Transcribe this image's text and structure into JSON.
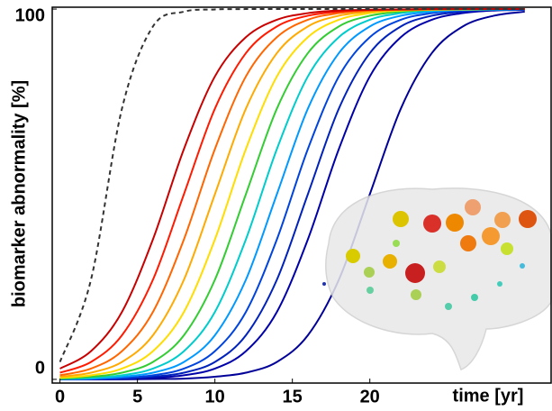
{
  "chart_data": {
    "type": "line",
    "xlabel": "time [yr]",
    "ylabel": "biomarker abnormality [%]",
    "x": [
      0,
      2,
      4,
      6,
      8,
      10,
      12,
      14,
      16,
      18,
      20,
      22,
      24,
      26,
      28,
      30
    ],
    "xlim": [
      -0.5,
      31.7
    ],
    "xticks": [
      0,
      5,
      10,
      15,
      20
    ],
    "ylim": [
      -1,
      100.5
    ],
    "yticks": [
      0,
      100
    ],
    "series": [
      {
        "color": "#000099",
        "width": 2,
        "values": [
          0,
          0,
          0,
          0.1,
          0.2,
          0.7,
          1.8,
          4.7,
          11.9,
          26.9,
          50,
          73.1,
          88.1,
          95.3,
          98.2,
          99.3
        ]
      },
      {
        "color": "#0000aa",
        "width": 2,
        "values": [
          0,
          0,
          0.1,
          0.4,
          1.1,
          2.9,
          7.6,
          18.2,
          37.8,
          62.2,
          81.8,
          92.4,
          97.1,
          98.9,
          99.6,
          99.8
        ]
      },
      {
        "color": "#0022bb",
        "width": 2,
        "values": [
          0,
          0.1,
          0.2,
          0.7,
          1.8,
          4.7,
          11.9,
          26.9,
          50,
          73.1,
          88.1,
          95.3,
          98.2,
          99.3,
          99.8,
          99.9
        ]
      },
      {
        "color": "#0044dd",
        "width": 2,
        "values": [
          0.1,
          0.1,
          0.4,
          1.1,
          2.9,
          7.6,
          18.2,
          37.8,
          62.2,
          81.8,
          92.4,
          97.1,
          98.9,
          99.6,
          99.8,
          99.9
        ]
      },
      {
        "color": "#0099ff",
        "width": 2,
        "values": [
          0.1,
          0.2,
          0.7,
          1.8,
          4.7,
          11.9,
          26.9,
          50,
          73.1,
          88.1,
          95.3,
          98.2,
          99.3,
          99.8,
          99.9,
          100
        ]
      },
      {
        "color": "#00cccc",
        "width": 2,
        "values": [
          0.1,
          0.4,
          1.1,
          2.9,
          7.6,
          18.2,
          37.8,
          62.2,
          81.8,
          92.4,
          97.1,
          98.9,
          99.6,
          99.8,
          99.9,
          100
        ]
      },
      {
        "color": "#33cc33",
        "width": 2,
        "values": [
          0.2,
          0.7,
          1.8,
          4.7,
          11.9,
          26.9,
          50,
          73.1,
          88.1,
          95.3,
          98.2,
          99.3,
          99.8,
          99.9,
          100,
          100
        ]
      },
      {
        "color": "#ffdd00",
        "width": 2,
        "values": [
          0.4,
          1.1,
          2.9,
          7.6,
          18.2,
          37.8,
          62.2,
          81.8,
          92.4,
          97.1,
          98.9,
          99.6,
          99.8,
          99.9,
          100,
          100
        ]
      },
      {
        "color": "#ffaa00",
        "width": 2,
        "values": [
          0.7,
          1.8,
          4.7,
          11.9,
          26.9,
          50,
          73.1,
          88.1,
          95.3,
          98.2,
          99.3,
          99.8,
          99.9,
          100,
          100,
          100
        ]
      },
      {
        "color": "#ff6600",
        "width": 2,
        "values": [
          1.1,
          2.9,
          7.6,
          18.2,
          37.8,
          62.2,
          81.8,
          92.4,
          97.1,
          98.9,
          99.6,
          99.8,
          99.9,
          100,
          100,
          100
        ]
      },
      {
        "color": "#ff1a00",
        "width": 2,
        "values": [
          1.8,
          4.7,
          11.9,
          26.9,
          50,
          73.1,
          88.1,
          95.3,
          98.2,
          99.3,
          99.8,
          99.9,
          100,
          100,
          100,
          100
        ]
      },
      {
        "color": "#c80000",
        "width": 2,
        "values": [
          2.9,
          7.6,
          18.2,
          37.8,
          62.2,
          81.8,
          92.4,
          97.1,
          98.9,
          99.6,
          99.8,
          99.9,
          100,
          100,
          100,
          100
        ]
      },
      {
        "color": "#333333",
        "width": 2,
        "dashed": true,
        "values": [
          4.7,
          26.9,
          73.1,
          95.3,
          99.3,
          99.9,
          100,
          100,
          100,
          100,
          100,
          100,
          100,
          100,
          100,
          100
        ]
      }
    ]
  }
}
